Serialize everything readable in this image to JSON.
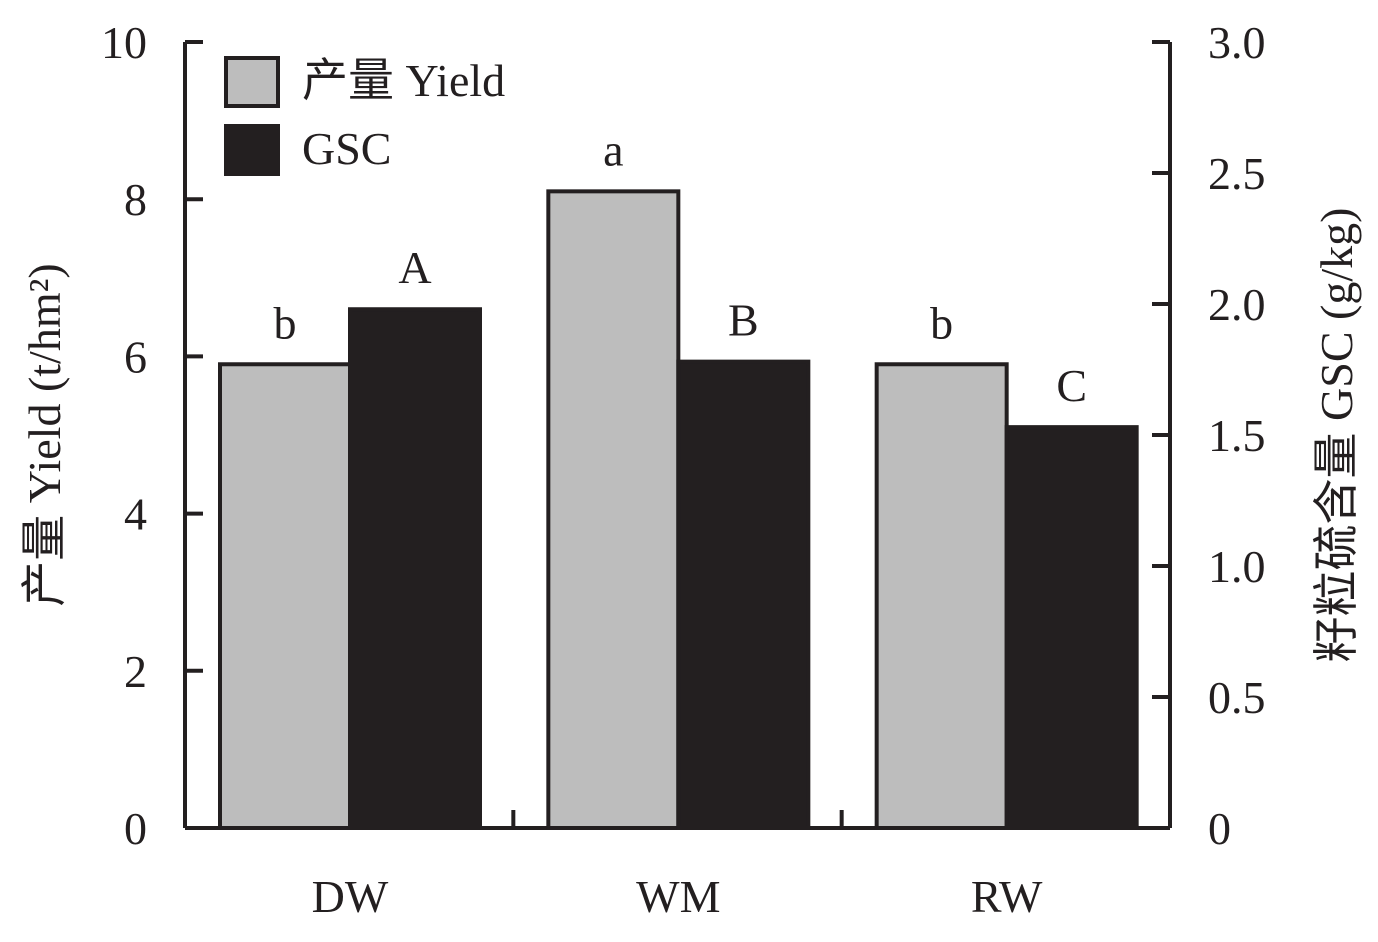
{
  "chart_data": {
    "type": "bar",
    "categories": [
      "DW",
      "WM",
      "RW"
    ],
    "series": [
      {
        "name": "产量 Yield",
        "axis": "left",
        "color": "#bdbdbd",
        "values": [
          5.9,
          8.1,
          5.9
        ],
        "significance": [
          "b",
          "a",
          "b"
        ]
      },
      {
        "name": "GSC",
        "axis": "right",
        "color": "#231f20",
        "values": [
          1.98,
          1.78,
          1.53
        ],
        "significance": [
          "A",
          "B",
          "C"
        ]
      }
    ],
    "left_axis": {
      "label": "产量 Yield (t/hm²)",
      "ylim": [
        0,
        10
      ],
      "ticks": [
        "0",
        "2",
        "4",
        "6",
        "8",
        "10"
      ]
    },
    "right_axis": {
      "label": "籽粒硫含量 GSC (g/kg)",
      "ylim": [
        0,
        3.0
      ],
      "ticks": [
        "0",
        "0.5",
        "1.0",
        "1.5",
        "2.0",
        "2.5",
        "3.0"
      ]
    },
    "legend_position": "top-left",
    "grid": false
  }
}
